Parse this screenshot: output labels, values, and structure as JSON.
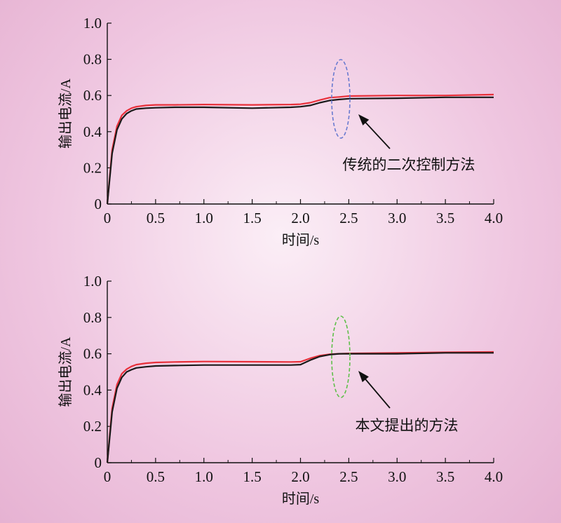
{
  "chart_data": [
    {
      "type": "line",
      "xlabel": "时间/s",
      "ylabel": "输出电流/A",
      "xlim": [
        0,
        4.0
      ],
      "ylim": [
        0,
        1.0
      ],
      "xticks": [
        "0",
        "0.5",
        "1.0",
        "1.5",
        "2.0",
        "2.5",
        "3.0",
        "3.5",
        "4.0"
      ],
      "yticks": [
        "0",
        "0.2",
        "0.4",
        "0.6",
        "0.8",
        "1.0"
      ],
      "grid": false,
      "annotation": "传统的二次控制方法",
      "highlight_color": "#6a7bd0",
      "series": [
        {
          "color": "#e8303a",
          "x": [
            0,
            0.05,
            0.1,
            0.15,
            0.2,
            0.25,
            0.3,
            0.4,
            0.5,
            0.7,
            1.0,
            1.5,
            1.9,
            2.0,
            2.1,
            2.2,
            2.3,
            2.4,
            2.5,
            3.0,
            3.5,
            4.0
          ],
          "y": [
            0,
            0.3,
            0.43,
            0.49,
            0.515,
            0.53,
            0.538,
            0.545,
            0.548,
            0.548,
            0.55,
            0.548,
            0.55,
            0.552,
            0.56,
            0.575,
            0.588,
            0.592,
            0.597,
            0.6,
            0.6,
            0.605
          ]
        },
        {
          "color": "#1a1a1a",
          "x": [
            0,
            0.05,
            0.1,
            0.15,
            0.2,
            0.25,
            0.3,
            0.4,
            0.5,
            0.7,
            1.0,
            1.5,
            1.9,
            2.0,
            2.1,
            2.2,
            2.3,
            2.4,
            2.5,
            3.0,
            3.5,
            4.0
          ],
          "y": [
            0,
            0.28,
            0.41,
            0.47,
            0.5,
            0.515,
            0.525,
            0.53,
            0.532,
            0.535,
            0.535,
            0.53,
            0.535,
            0.538,
            0.545,
            0.56,
            0.572,
            0.578,
            0.582,
            0.585,
            0.59,
            0.59
          ]
        }
      ]
    },
    {
      "type": "line",
      "xlabel": "时间/s",
      "ylabel": "输出电流/A",
      "xlim": [
        0,
        4.0
      ],
      "ylim": [
        0,
        1.0
      ],
      "xticks": [
        "0",
        "0.5",
        "1.0",
        "1.5",
        "2.0",
        "2.5",
        "3.0",
        "3.5",
        "4.0"
      ],
      "yticks": [
        "0",
        "0.2",
        "0.4",
        "0.6",
        "0.8",
        "1.0"
      ],
      "grid": false,
      "annotation": "本文提出的方法",
      "highlight_color": "#5fbf4a",
      "series": [
        {
          "color": "#e8303a",
          "x": [
            0,
            0.05,
            0.1,
            0.15,
            0.2,
            0.25,
            0.3,
            0.4,
            0.5,
            0.7,
            1.0,
            1.5,
            1.9,
            2.0,
            2.1,
            2.2,
            2.3,
            2.4,
            2.5,
            3.0,
            3.5,
            4.0
          ],
          "y": [
            0,
            0.3,
            0.43,
            0.49,
            0.515,
            0.53,
            0.54,
            0.548,
            0.552,
            0.555,
            0.557,
            0.556,
            0.555,
            0.556,
            0.575,
            0.59,
            0.597,
            0.6,
            0.602,
            0.605,
            0.608,
            0.61
          ]
        },
        {
          "color": "#1a1a1a",
          "x": [
            0,
            0.05,
            0.1,
            0.15,
            0.2,
            0.25,
            0.3,
            0.4,
            0.5,
            0.7,
            1.0,
            1.5,
            1.9,
            2.0,
            2.1,
            2.2,
            2.3,
            2.4,
            2.5,
            3.0,
            3.5,
            4.0
          ],
          "y": [
            0,
            0.28,
            0.41,
            0.47,
            0.5,
            0.512,
            0.522,
            0.528,
            0.533,
            0.535,
            0.538,
            0.538,
            0.538,
            0.54,
            0.565,
            0.585,
            0.595,
            0.6,
            0.6,
            0.6,
            0.605,
            0.605
          ]
        }
      ]
    }
  ]
}
